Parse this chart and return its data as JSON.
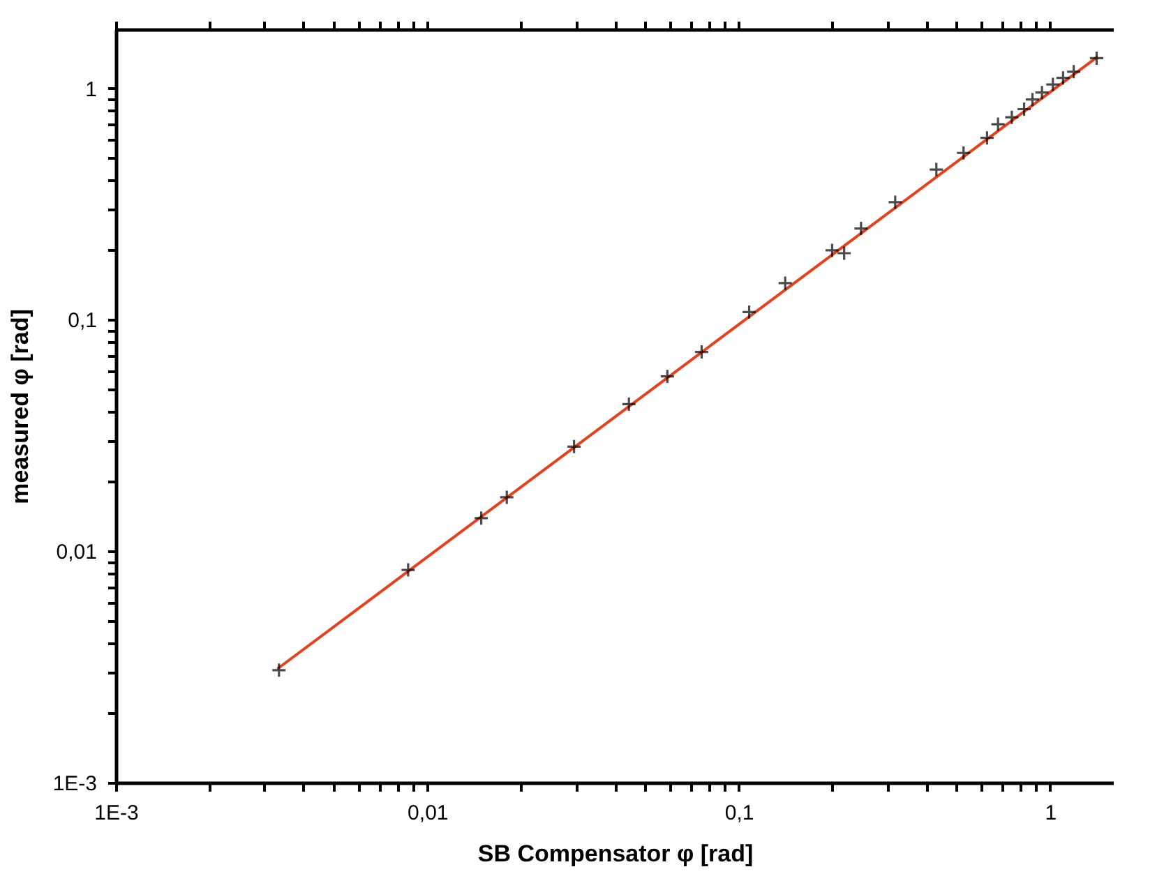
{
  "chart_data": {
    "type": "scatter",
    "xlabel": "SB Compensator φ [rad]",
    "ylabel": "measured φ [rad]",
    "log": "xy",
    "grid": false,
    "marker": "cross",
    "xlim": [
      0.001,
      1.6
    ],
    "ylim": [
      0.001,
      1.8
    ],
    "xticks": [
      {
        "value": 0.001,
        "label": "1E-3"
      },
      {
        "value": 0.002,
        "label": null
      },
      {
        "value": 0.003,
        "label": null
      },
      {
        "value": 0.004,
        "label": null
      },
      {
        "value": 0.005,
        "label": null
      },
      {
        "value": 0.006,
        "label": null
      },
      {
        "value": 0.007,
        "label": null
      },
      {
        "value": 0.008,
        "label": null
      },
      {
        "value": 0.009,
        "label": null
      },
      {
        "value": 0.01,
        "label": "0,01"
      },
      {
        "value": 0.02,
        "label": null
      },
      {
        "value": 0.03,
        "label": null
      },
      {
        "value": 0.04,
        "label": null
      },
      {
        "value": 0.05,
        "label": null
      },
      {
        "value": 0.06,
        "label": null
      },
      {
        "value": 0.07,
        "label": null
      },
      {
        "value": 0.08,
        "label": null
      },
      {
        "value": 0.09,
        "label": null
      },
      {
        "value": 0.1,
        "label": "0,1"
      },
      {
        "value": 0.2,
        "label": null
      },
      {
        "value": 0.3,
        "label": null
      },
      {
        "value": 0.4,
        "label": null
      },
      {
        "value": 0.5,
        "label": null
      },
      {
        "value": 0.6,
        "label": null
      },
      {
        "value": 0.7,
        "label": null
      },
      {
        "value": 0.8,
        "label": null
      },
      {
        "value": 0.9,
        "label": null
      },
      {
        "value": 1,
        "label": "1"
      }
    ],
    "yticks": [
      {
        "value": 0.001,
        "label": "1E-3"
      },
      {
        "value": 0.002,
        "label": null
      },
      {
        "value": 0.003,
        "label": null
      },
      {
        "value": 0.004,
        "label": null
      },
      {
        "value": 0.005,
        "label": null
      },
      {
        "value": 0.006,
        "label": null
      },
      {
        "value": 0.007,
        "label": null
      },
      {
        "value": 0.008,
        "label": null
      },
      {
        "value": 0.009,
        "label": null
      },
      {
        "value": 0.01,
        "label": "0,01"
      },
      {
        "value": 0.02,
        "label": null
      },
      {
        "value": 0.03,
        "label": null
      },
      {
        "value": 0.04,
        "label": null
      },
      {
        "value": 0.05,
        "label": null
      },
      {
        "value": 0.06,
        "label": null
      },
      {
        "value": 0.07,
        "label": null
      },
      {
        "value": 0.08,
        "label": null
      },
      {
        "value": 0.09,
        "label": null
      },
      {
        "value": 0.1,
        "label": "0,1"
      },
      {
        "value": 0.2,
        "label": null
      },
      {
        "value": 0.3,
        "label": null
      },
      {
        "value": 0.4,
        "label": null
      },
      {
        "value": 0.5,
        "label": null
      },
      {
        "value": 0.6,
        "label": null
      },
      {
        "value": 0.7,
        "label": null
      },
      {
        "value": 0.8,
        "label": null
      },
      {
        "value": 0.9,
        "label": null
      },
      {
        "value": 1,
        "label": "1"
      }
    ],
    "series": [
      {
        "type": "line",
        "marker": "none",
        "color": "#e8401c",
        "x": [
          0.0033,
          1.42
        ],
        "values": [
          0.0031,
          1.37
        ]
      },
      {
        "color": "#000000",
        "x": [
          0.00334,
          0.00868,
          0.0149,
          0.018,
          0.0296,
          0.0444,
          0.059,
          0.076,
          0.108,
          0.141,
          0.1995,
          0.218,
          0.247,
          0.318,
          0.431,
          0.527,
          0.627,
          0.68,
          0.753,
          0.825,
          0.877,
          0.941,
          1.02,
          1.1,
          1.19,
          1.41
        ],
        "values": [
          0.00306,
          0.0083,
          0.0139,
          0.0171,
          0.0283,
          0.0432,
          0.0569,
          0.0726,
          0.108,
          0.144,
          0.1995,
          0.194,
          0.248,
          0.322,
          0.446,
          0.526,
          0.611,
          0.7,
          0.75,
          0.813,
          0.895,
          0.959,
          1.04,
          1.11,
          1.18,
          1.35
        ]
      }
    ]
  }
}
